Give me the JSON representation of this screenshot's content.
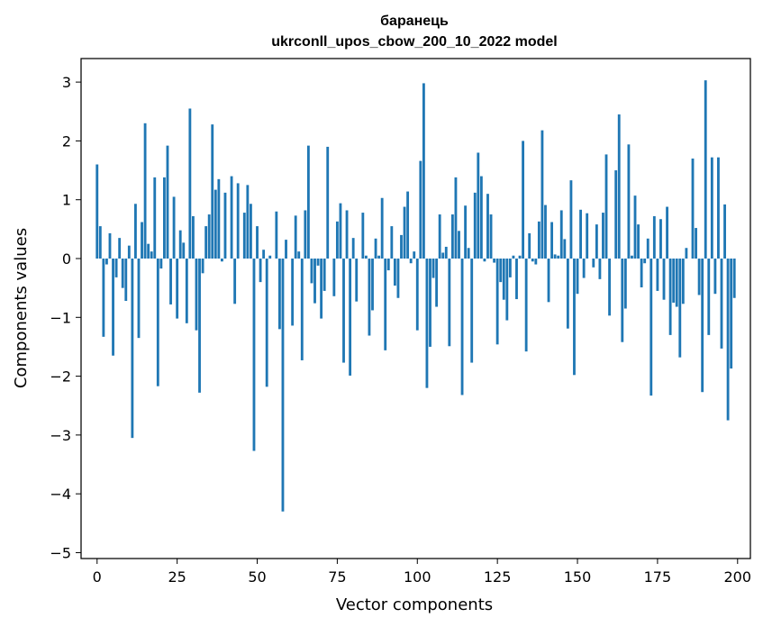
{
  "chart_data": {
    "type": "bar",
    "title": "баранець",
    "subtitle": "ukrconll_upos_cbow_200_10_2022 model",
    "xlabel": "Vector components",
    "ylabel": "Components values",
    "xlim": [
      -5,
      204
    ],
    "ylim": [
      -5.1,
      3.4
    ],
    "xticks": [
      0,
      25,
      50,
      75,
      100,
      125,
      150,
      175,
      200
    ],
    "yticks": [
      -5,
      -4,
      -3,
      -2,
      -1,
      0,
      1,
      2,
      3
    ],
    "xtick_labels": [
      "0",
      "25",
      "50",
      "75",
      "100",
      "125",
      "150",
      "175",
      "200"
    ],
    "ytick_labels": [
      "−5",
      "−4",
      "−3",
      "−2",
      "−1",
      "0",
      "1",
      "2",
      "3"
    ],
    "grid": false,
    "bar_color": "#1f77b4",
    "x": [
      0,
      1,
      2,
      3,
      4,
      5,
      6,
      7,
      8,
      9,
      10,
      11,
      12,
      13,
      14,
      15,
      16,
      17,
      18,
      19,
      20,
      21,
      22,
      23,
      24,
      25,
      26,
      27,
      28,
      29,
      30,
      31,
      32,
      33,
      34,
      35,
      36,
      37,
      38,
      39,
      40,
      41,
      42,
      43,
      44,
      45,
      46,
      47,
      48,
      49,
      50,
      51,
      52,
      53,
      54,
      55,
      56,
      57,
      58,
      59,
      60,
      61,
      62,
      63,
      64,
      65,
      66,
      67,
      68,
      69,
      70,
      71,
      72,
      73,
      74,
      75,
      76,
      77,
      78,
      79,
      80,
      81,
      82,
      83,
      84,
      85,
      86,
      87,
      88,
      89,
      90,
      91,
      92,
      93,
      94,
      95,
      96,
      97,
      98,
      99,
      100,
      101,
      102,
      103,
      104,
      105,
      106,
      107,
      108,
      109,
      110,
      111,
      112,
      113,
      114,
      115,
      116,
      117,
      118,
      119,
      120,
      121,
      122,
      123,
      124,
      125,
      126,
      127,
      128,
      129,
      130,
      131,
      132,
      133,
      134,
      135,
      136,
      137,
      138,
      139,
      140,
      141,
      142,
      143,
      144,
      145,
      146,
      147,
      148,
      149,
      150,
      151,
      152,
      153,
      154,
      155,
      156,
      157,
      158,
      159,
      160,
      161,
      162,
      163,
      164,
      165,
      166,
      167,
      168,
      169,
      170,
      171,
      172,
      173,
      174,
      175,
      176,
      177,
      178,
      179,
      180,
      181,
      182,
      183,
      184,
      185,
      186,
      187,
      188,
      189,
      190,
      191,
      192,
      193,
      194,
      195,
      196,
      197,
      198,
      199
    ],
    "values": [
      1.6,
      0.55,
      -1.33,
      -0.1,
      0.43,
      -1.65,
      -0.32,
      0.35,
      -0.5,
      -0.72,
      0.22,
      -3.05,
      0.93,
      -1.35,
      0.62,
      2.3,
      0.25,
      0.12,
      1.38,
      -2.17,
      -0.17,
      1.38,
      1.92,
      -0.78,
      1.05,
      -1.02,
      0.48,
      0.27,
      -1.1,
      2.55,
      0.72,
      -1.22,
      -2.28,
      -0.25,
      0.55,
      0.75,
      2.28,
      1.17,
      1.35,
      -0.05,
      1.12,
      0.0,
      1.4,
      -0.77,
      1.28,
      0.0,
      0.78,
      1.25,
      0.93,
      -3.27,
      0.55,
      -0.4,
      0.15,
      -2.18,
      0.05,
      0.0,
      0.8,
      -1.2,
      -4.3,
      0.32,
      0.0,
      -1.14,
      0.73,
      0.12,
      -1.73,
      0.82,
      1.92,
      -0.42,
      -0.76,
      -0.12,
      -1.02,
      -0.55,
      1.9,
      0.0,
      -0.64,
      0.63,
      0.94,
      -1.77,
      0.82,
      -1.99,
      0.35,
      -0.73,
      0.0,
      0.78,
      0.05,
      -1.31,
      -0.88,
      0.34,
      0.05,
      1.03,
      -1.56,
      -0.2,
      0.55,
      -0.46,
      -0.67,
      0.4,
      0.88,
      1.14,
      -0.08,
      0.12,
      -1.22,
      1.66,
      2.98,
      -2.2,
      -1.5,
      -0.33,
      -0.82,
      0.75,
      0.1,
      0.2,
      -1.49,
      0.75,
      1.38,
      0.47,
      -2.32,
      0.9,
      0.18,
      -1.77,
      1.12,
      1.8,
      1.4,
      -0.05,
      1.1,
      0.75,
      -0.07,
      -1.46,
      -0.4,
      -0.7,
      -1.05,
      -0.32,
      0.05,
      -0.69,
      0.05,
      2.0,
      -1.58,
      0.43,
      -0.05,
      -0.1,
      0.63,
      2.18,
      0.91,
      -0.74,
      0.62,
      0.07,
      0.05,
      0.82,
      0.33,
      -1.19,
      1.33,
      -1.98,
      -0.6,
      0.83,
      -0.33,
      0.77,
      0.0,
      -0.15,
      0.58,
      -0.35,
      0.78,
      1.77,
      -0.97,
      0.0,
      1.5,
      2.45,
      -1.42,
      -0.85,
      1.94,
      0.05,
      1.07,
      0.58,
      -0.49,
      -0.08,
      0.34,
      -2.33,
      0.72,
      -0.55,
      0.67,
      -0.7,
      0.88,
      -1.3,
      -0.75,
      -0.82,
      -1.68,
      -0.77,
      0.18,
      0.0,
      1.7,
      0.52,
      -0.62,
      -2.27,
      3.03,
      -1.3,
      1.72,
      -0.6,
      1.72,
      -1.53,
      0.92,
      -2.75,
      -1.87,
      -0.67
    ]
  }
}
